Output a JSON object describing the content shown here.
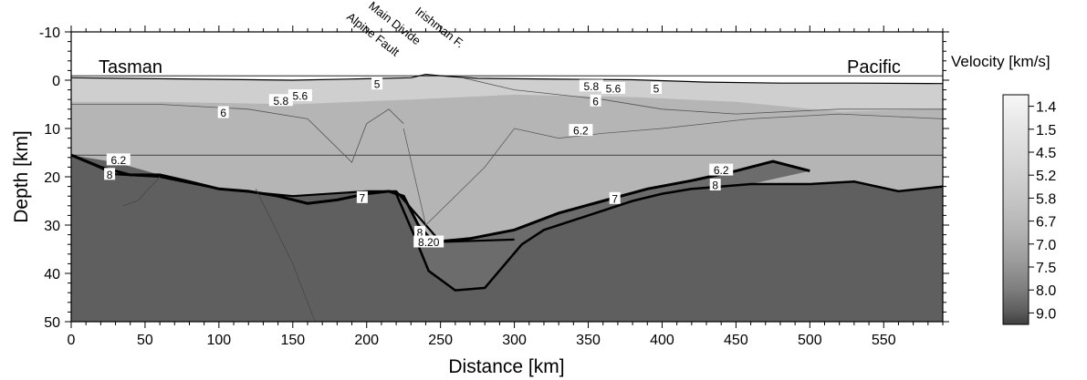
{
  "chart_data": {
    "type": "heatmap",
    "xlabel": "Distance [km]",
    "ylabel": "Depth [km]",
    "xlim": [
      0,
      590
    ],
    "ylim": [
      -10,
      50
    ],
    "y_inverted": true,
    "x_ticks": [
      0,
      50,
      100,
      150,
      200,
      250,
      300,
      350,
      400,
      450,
      500,
      550
    ],
    "y_ticks": [
      -10,
      0,
      10,
      20,
      30,
      40,
      50
    ],
    "region_labels": [
      {
        "text": "Tasman",
        "x": 20,
        "y": -2.5
      },
      {
        "text": "Pacific",
        "x": 552,
        "y": -2.5
      }
    ],
    "feature_labels": [
      {
        "text": "Alpine Fault",
        "x": 200
      },
      {
        "text": "Main Divide",
        "x": 214
      },
      {
        "text": "Irishman F.",
        "x": 245
      }
    ],
    "colorbar": {
      "title": "Velocity [km/s]",
      "ticks": [
        "1.4",
        "1.5",
        "4.5",
        "5.2",
        "5.8",
        "6.7",
        "7.0",
        "7.5",
        "8.0",
        "9.0"
      ],
      "colors": [
        "#f4f4f4",
        "#e9e9e9",
        "#dcdcdc",
        "#cfcfcf",
        "#bfbfbf",
        "#ababab",
        "#999999",
        "#838383",
        "#6a6a6a",
        "#4a4a4a"
      ]
    },
    "contour_labels": [
      {
        "text": "5",
        "x": 207,
        "y": 0.8
      },
      {
        "text": "5.6",
        "x": 155,
        "y": 3.2
      },
      {
        "text": "5.8",
        "x": 142,
        "y": 4.2
      },
      {
        "text": "6",
        "x": 103,
        "y": 6.7
      },
      {
        "text": "5.8",
        "x": 352,
        "y": 1.2
      },
      {
        "text": "5.6",
        "x": 367,
        "y": 1.7
      },
      {
        "text": "5",
        "x": 396,
        "y": 1.7
      },
      {
        "text": "6",
        "x": 355,
        "y": 4.3
      },
      {
        "text": "6.2",
        "x": 345,
        "y": 10.4
      },
      {
        "text": "6.2",
        "x": 32,
        "y": 16.5
      },
      {
        "text": "8",
        "x": 26,
        "y": 19.5
      },
      {
        "text": "7",
        "x": 197,
        "y": 24.3
      },
      {
        "text": "8",
        "x": 236,
        "y": 31.5
      },
      {
        "text": "8.20",
        "x": 242,
        "y": 33.5
      },
      {
        "text": "7",
        "x": 368,
        "y": 24.5
      },
      {
        "text": "6.2",
        "x": 440,
        "y": 18.6
      },
      {
        "text": "8",
        "x": 436,
        "y": 21.7
      }
    ],
    "moho_km": [
      [
        0,
        15.5
      ],
      [
        20,
        18
      ],
      [
        40,
        19.6
      ],
      [
        60,
        19.6
      ],
      [
        80,
        21
      ],
      [
        100,
        22.5
      ],
      [
        120,
        23
      ],
      [
        140,
        24
      ],
      [
        160,
        25.5
      ],
      [
        180,
        24.8
      ],
      [
        200,
        23.5
      ],
      [
        215,
        23
      ],
      [
        225,
        24
      ],
      [
        235,
        30
      ],
      [
        245,
        33.5
      ],
      [
        270,
        32.8
      ],
      [
        300,
        31
      ],
      [
        330,
        27.5
      ],
      [
        360,
        25
      ],
      [
        390,
        22.5
      ],
      [
        420,
        20.8
      ],
      [
        450,
        18.8
      ],
      [
        475,
        16.8
      ],
      [
        500,
        18.8
      ]
    ],
    "interface_km": [
      [
        0,
        15.5
      ],
      [
        30,
        19.5
      ],
      [
        60,
        20
      ],
      [
        100,
        22.5
      ],
      [
        150,
        24
      ],
      [
        200,
        23
      ],
      [
        220,
        23
      ],
      [
        250,
        33.5
      ],
      [
        300,
        33
      ]
    ],
    "deep_boundary_km": [
      [
        220,
        23.5
      ],
      [
        232,
        32
      ],
      [
        242,
        39.5
      ],
      [
        260,
        43.5
      ],
      [
        280,
        43
      ],
      [
        305,
        34
      ],
      [
        320,
        31
      ],
      [
        350,
        28
      ],
      [
        380,
        25
      ],
      [
        400,
        23.5
      ],
      [
        420,
        22.5
      ],
      [
        460,
        21.5
      ],
      [
        500,
        21.5
      ],
      [
        530,
        21
      ],
      [
        560,
        23
      ],
      [
        590,
        22
      ]
    ],
    "topography_km": [
      [
        0,
        -0.5
      ],
      [
        150,
        0
      ],
      [
        200,
        -0.3
      ],
      [
        230,
        -0.5
      ],
      [
        240,
        -1.2
      ],
      [
        255,
        -0.8
      ],
      [
        275,
        -0.4
      ],
      [
        300,
        -0.3
      ],
      [
        330,
        -0.2
      ],
      [
        380,
        -0.1
      ],
      [
        430,
        0.4
      ],
      [
        480,
        0.6
      ],
      [
        530,
        0.6
      ],
      [
        590,
        0.7
      ]
    ]
  }
}
